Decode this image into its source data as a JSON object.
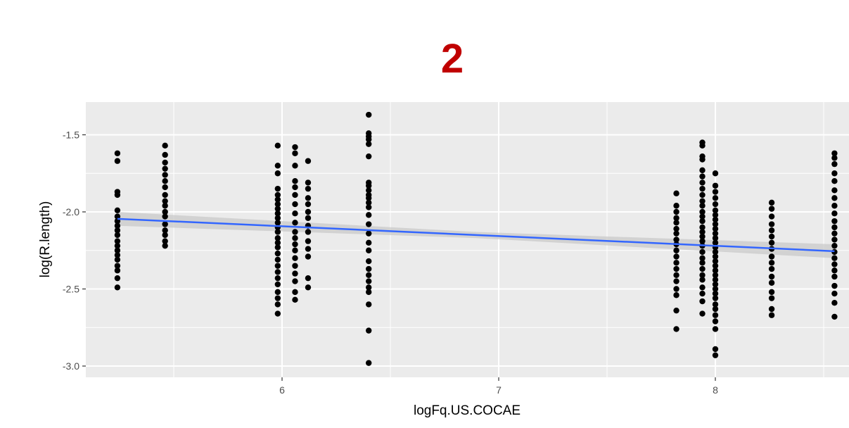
{
  "chart_data": {
    "type": "scatter",
    "title": "2",
    "xlabel": "logFq.US.COCAE",
    "ylabel": "log(R.length)",
    "xlim": [
      5.1,
      8.58
    ],
    "ylim": [
      -3.05,
      -1.33
    ],
    "x_ticks": [
      6,
      7,
      8
    ],
    "x_tick_labels": [
      "6",
      "7",
      "8"
    ],
    "y_ticks": [
      -3.0,
      -2.5,
      -2.0,
      -1.5
    ],
    "y_tick_labels": [
      "-3.0",
      "-2.5",
      "-2.0",
      "-1.5"
    ],
    "grid": true,
    "colors": {
      "title": "#c00000",
      "panel": "#ebebeb",
      "grid": "#ffffff",
      "points": "#000000",
      "fit_line": "#3366ff",
      "confidence_band": "#c8c8c8"
    },
    "fit": {
      "method": "linear",
      "x": [
        5.24,
        8.55
      ],
      "y": [
        -2.045,
        -2.255
      ],
      "se_halfwidth_start": 0.045,
      "se_halfwidth_mid": 0.02,
      "se_halfwidth_end": 0.045
    },
    "groups": [
      {
        "x": 5.24,
        "y": [
          -1.62,
          -1.67,
          -1.87,
          -1.89,
          -1.99,
          -2.03,
          -2.06,
          -2.09,
          -2.12,
          -2.15,
          -2.19,
          -2.22,
          -2.25,
          -2.28,
          -2.31,
          -2.35,
          -2.38,
          -2.43,
          -2.49
        ]
      },
      {
        "x": 5.46,
        "y": [
          -1.57,
          -1.63,
          -1.68,
          -1.72,
          -1.76,
          -1.8,
          -1.84,
          -1.89,
          -1.93,
          -1.96,
          -2.0,
          -2.03,
          -2.08,
          -2.12,
          -2.15,
          -2.19,
          -2.22
        ]
      },
      {
        "x": 5.98,
        "y": [
          -1.57,
          -1.7,
          -1.75,
          -1.85,
          -1.89,
          -1.92,
          -1.95,
          -1.98,
          -2.01,
          -2.04,
          -2.07,
          -2.1,
          -2.13,
          -2.17,
          -2.2,
          -2.23,
          -2.27,
          -2.31,
          -2.35,
          -2.39,
          -2.43,
          -2.47,
          -2.52,
          -2.56,
          -2.6,
          -2.66
        ]
      },
      {
        "x": 6.06,
        "y": [
          -1.58,
          -1.62,
          -1.7,
          -1.8,
          -1.84,
          -1.89,
          -1.95,
          -2.01,
          -2.07,
          -2.13,
          -2.17,
          -2.21,
          -2.25,
          -2.3,
          -2.35,
          -2.4,
          -2.45,
          -2.52,
          -2.57
        ]
      },
      {
        "x": 6.12,
        "y": [
          -1.67,
          -1.81,
          -1.85,
          -1.91,
          -1.95,
          -2.0,
          -2.04,
          -2.09,
          -2.13,
          -2.19,
          -2.24,
          -2.29,
          -2.43,
          -2.49
        ]
      },
      {
        "x": 6.4,
        "y": [
          -1.37,
          -1.49,
          -1.51,
          -1.53,
          -1.56,
          -1.64,
          -1.81,
          -1.83,
          -1.86,
          -1.89,
          -1.91,
          -1.94,
          -1.97,
          -2.02,
          -2.08,
          -2.14,
          -2.2,
          -2.25,
          -2.32,
          -2.37,
          -2.41,
          -2.45,
          -2.49,
          -2.52,
          -2.6,
          -2.77,
          -2.98
        ]
      },
      {
        "x": 7.82,
        "y": [
          -1.88,
          -1.96,
          -2.0,
          -2.04,
          -2.07,
          -2.11,
          -2.14,
          -2.18,
          -2.21,
          -2.25,
          -2.29,
          -2.33,
          -2.37,
          -2.41,
          -2.45,
          -2.5,
          -2.54,
          -2.64,
          -2.76
        ]
      },
      {
        "x": 7.94,
        "y": [
          -1.55,
          -1.57,
          -1.64,
          -1.66,
          -1.73,
          -1.77,
          -1.81,
          -1.85,
          -1.89,
          -1.93,
          -1.96,
          -2.0,
          -2.03,
          -2.06,
          -2.1,
          -2.13,
          -2.16,
          -2.19,
          -2.22,
          -2.26,
          -2.3,
          -2.33,
          -2.37,
          -2.41,
          -2.44,
          -2.49,
          -2.53,
          -2.58,
          -2.66
        ]
      },
      {
        "x": 8.0,
        "y": [
          -1.75,
          -1.83,
          -1.87,
          -1.91,
          -1.95,
          -1.99,
          -2.02,
          -2.05,
          -2.08,
          -2.11,
          -2.14,
          -2.17,
          -2.2,
          -2.23,
          -2.26,
          -2.29,
          -2.32,
          -2.35,
          -2.38,
          -2.41,
          -2.44,
          -2.47,
          -2.5,
          -2.53,
          -2.56,
          -2.6,
          -2.63,
          -2.67,
          -2.71,
          -2.76,
          -2.89,
          -2.93
        ]
      },
      {
        "x": 8.26,
        "y": [
          -1.94,
          -1.98,
          -2.03,
          -2.08,
          -2.12,
          -2.16,
          -2.2,
          -2.24,
          -2.29,
          -2.33,
          -2.37,
          -2.42,
          -2.46,
          -2.52,
          -2.56,
          -2.63,
          -2.67
        ]
      },
      {
        "x": 8.55,
        "y": [
          -1.62,
          -1.65,
          -1.69,
          -1.75,
          -1.8,
          -1.86,
          -1.91,
          -1.96,
          -2.01,
          -2.06,
          -2.1,
          -2.14,
          -2.18,
          -2.22,
          -2.26,
          -2.3,
          -2.34,
          -2.38,
          -2.42,
          -2.48,
          -2.53,
          -2.59,
          -2.68
        ]
      }
    ]
  }
}
